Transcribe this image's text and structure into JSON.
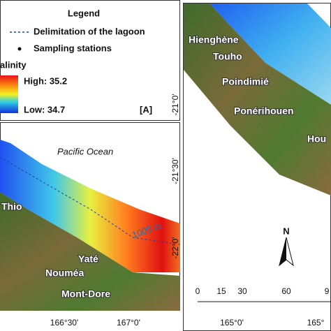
{
  "legend": {
    "title": "Legend",
    "lagoon": "Delimitation of the lagoon",
    "stations": "Sampling stations",
    "salinity": "alinity",
    "high": "High: 35.2",
    "low": "Low: 34.7",
    "panel": "[A]"
  },
  "map_a": {
    "ocean": "Pacific Ocean",
    "places": [
      "Thio",
      "Yaté",
      "Nouméa",
      "Mont-Dore"
    ],
    "isobath": "1000 m",
    "lon_labels": [
      "166°30'",
      "167°0'"
    ]
  },
  "map_b": {
    "places": [
      "Hienghène",
      "Touho",
      "Poindimié",
      "Ponérihouen",
      "Hou"
    ],
    "lat_labels": [
      "-21°0'",
      "-21°30'",
      "-22°0'"
    ],
    "scale_labels": [
      "0",
      "15",
      "30",
      "60",
      "9"
    ],
    "north": "N",
    "lon_labels": [
      "165°0'",
      "165°"
    ]
  }
}
